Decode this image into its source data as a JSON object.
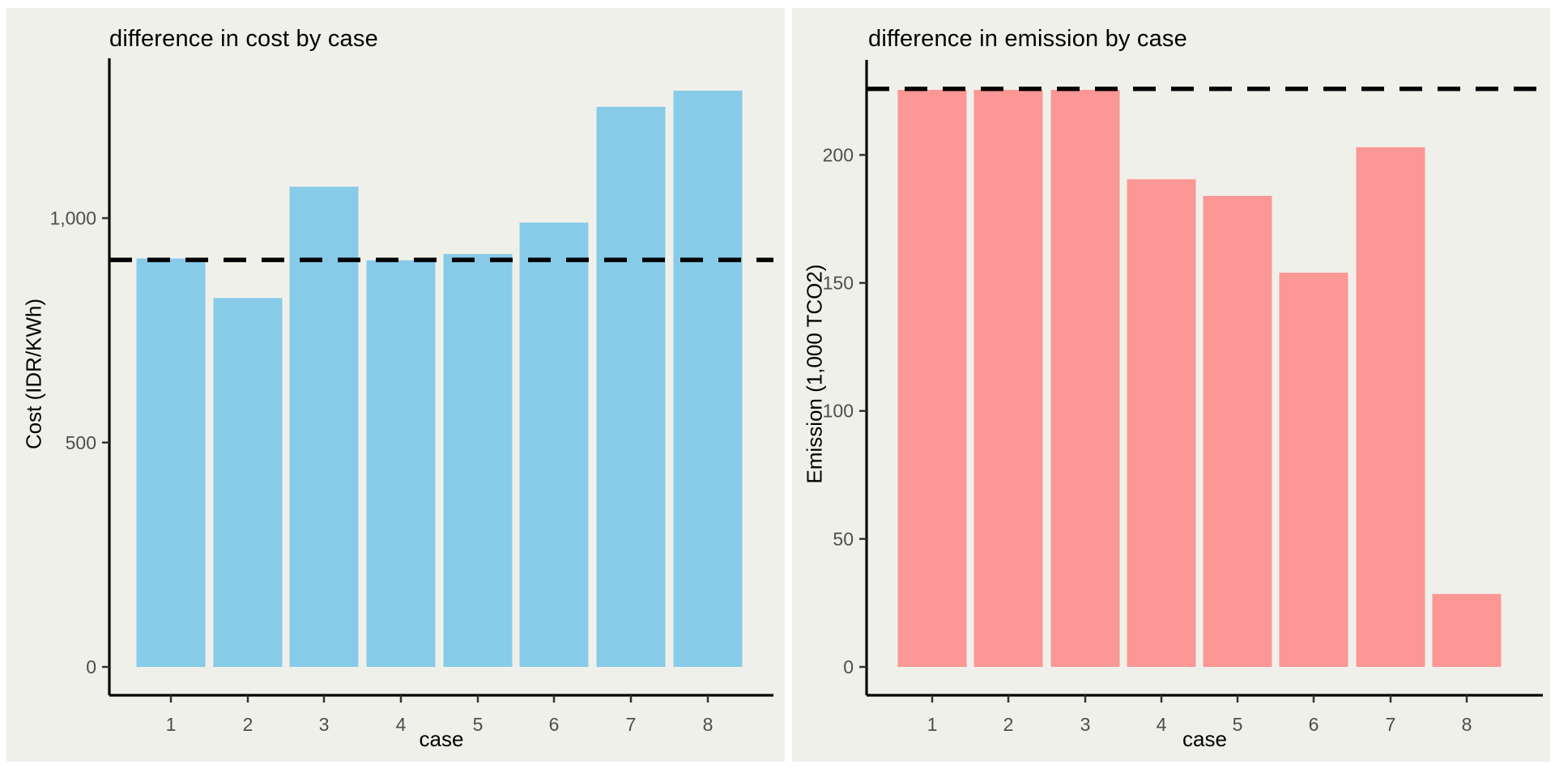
{
  "style": {
    "page_bg": "#FFFFFF",
    "figure_bg": "#F0F0EA",
    "axis_line_color": "#000000",
    "tick_label_color": "#4D4D4D",
    "title_color": "#000000",
    "ref_line_color": "#000000"
  },
  "chart_data": [
    {
      "type": "bar",
      "title": "difference in cost by case",
      "xlabel": "case",
      "ylabel": "Cost (IDR/KWh)",
      "categories": [
        "1",
        "2",
        "3",
        "4",
        "5",
        "6",
        "7",
        "8"
      ],
      "values": [
        910,
        822,
        1070,
        906,
        920,
        990,
        1248,
        1284
      ],
      "ref_line_value": 907,
      "ref_line_style": "dashed",
      "y_ticks": [
        {
          "v": 0,
          "label": "0"
        },
        {
          "v": 500,
          "label": "500"
        },
        {
          "v": 1000,
          "label": "1,000"
        }
      ],
      "ylim": [
        0,
        1350
      ],
      "bar_color": "#87CBE8",
      "grid": "off",
      "legend": "none"
    },
    {
      "type": "bar",
      "title": "difference in emission by case",
      "xlabel": "case",
      "ylabel": "Emission (1,000 TCO2)",
      "categories": [
        "1",
        "2",
        "3",
        "4",
        "5",
        "6",
        "7",
        "8"
      ],
      "values": [
        225.4,
        225.4,
        225.4,
        190.5,
        184,
        154,
        203,
        28.5
      ],
      "ref_line_value": 225.8,
      "ref_line_style": "dashed",
      "y_ticks": [
        {
          "v": 0,
          "label": "0"
        },
        {
          "v": 50,
          "label": "50"
        },
        {
          "v": 100,
          "label": "100"
        },
        {
          "v": 150,
          "label": "150"
        },
        {
          "v": 200,
          "label": "200"
        }
      ],
      "ylim": [
        0,
        237
      ],
      "bar_color": "#FB9795",
      "grid": "off",
      "legend": "none"
    }
  ]
}
